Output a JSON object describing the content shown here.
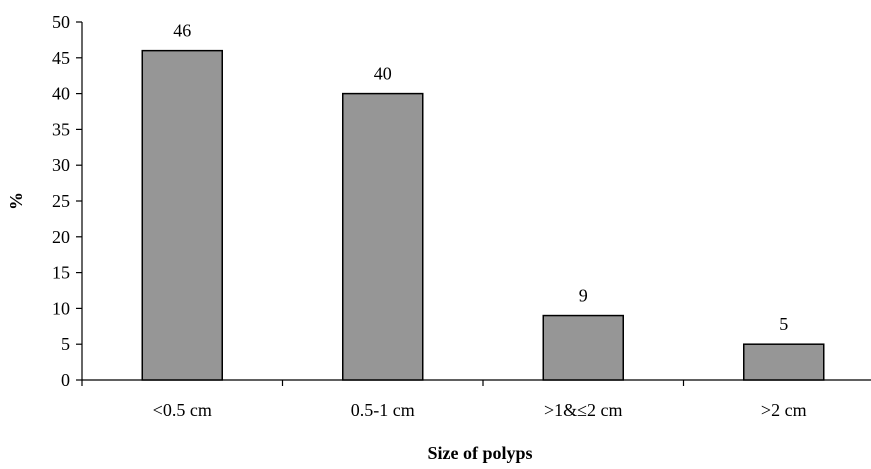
{
  "chart_data": {
    "type": "bar",
    "title": "",
    "xlabel": "Size of polyps",
    "ylabel": "%",
    "categories": [
      "<0.5 cm",
      "0.5-1 cm",
      ">1&≤2 cm",
      ">2 cm"
    ],
    "values": [
      46,
      40,
      9,
      5
    ],
    "data_labels": [
      "46",
      "40",
      "9",
      "5"
    ],
    "ylim": [
      0,
      50
    ],
    "yticks": [
      0,
      5,
      10,
      15,
      20,
      25,
      30,
      35,
      40,
      45,
      50
    ],
    "grid": false,
    "legend": "none",
    "colors": {
      "bar_fill": "#969696",
      "bar_stroke": "#000000",
      "axis": "#000000",
      "text": "#000000"
    }
  }
}
